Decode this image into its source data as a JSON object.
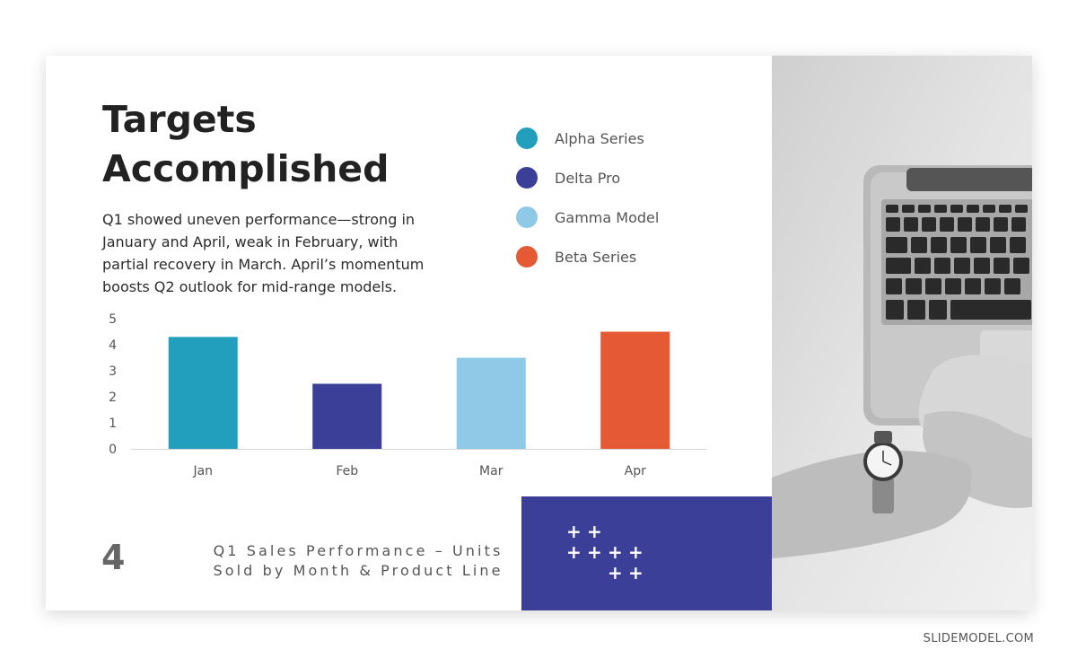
{
  "slide": {
    "title": "Targets Accomplished",
    "description": "Q1 showed uneven performance—strong in January and April, weak in February, with partial recovery in March. April’s momentum boosts Q2 outlook for mid-range models.",
    "page_number": "4",
    "footer_line1": "Q1 Sales Performance – Units",
    "footer_line2": "Sold by Month & Product Line",
    "watermark": "SLIDEMODEL.COM",
    "accent_color": "#3b3f98",
    "photo_icon": "laptop-hands-photo",
    "plus_icon": "plus-icon"
  },
  "legend": [
    {
      "label": "Alpha Series",
      "color": "#219fbd"
    },
    {
      "label": "Delta Pro",
      "color": "#3b3f98"
    },
    {
      "label": "Gamma Model",
      "color": "#8ec9e7"
    },
    {
      "label": "Beta Series",
      "color": "#e55a34"
    }
  ],
  "chart_data": {
    "type": "bar",
    "title": "",
    "xlabel": "",
    "ylabel": "",
    "categories": [
      "Jan",
      "Feb",
      "Mar",
      "Apr"
    ],
    "values": [
      4.3,
      2.5,
      3.5,
      4.5
    ],
    "colors": [
      "#219fbd",
      "#3b3f98",
      "#8ec9e7",
      "#e55a34"
    ],
    "ylim": [
      0,
      5
    ],
    "yticks": [
      0,
      1,
      2,
      3,
      4,
      5
    ],
    "grid": false,
    "legend_position": "top-right"
  }
}
